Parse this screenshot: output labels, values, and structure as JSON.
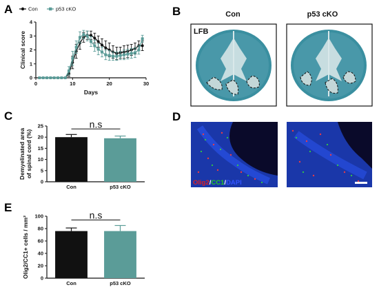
{
  "panel_letters": [
    "A",
    "B",
    "C",
    "D",
    "E"
  ],
  "colors": {
    "con": "#111111",
    "p53": "#5b9c98",
    "lfb_bg": "#9fc6c8",
    "lfb_tissue": "#3a8fa0",
    "fluor_bg": "#0a0a2a",
    "fluor_tissue": "#1d3fbf"
  },
  "panel_b": {
    "col_titles": [
      "Con",
      "p53 cKO"
    ],
    "stain_label": "LFB"
  },
  "panel_d": {
    "legend_parts": [
      {
        "text": "Olig2",
        "color": "#e02020"
      },
      {
        "text": "/",
        "color": "#ffffff"
      },
      {
        "text": "CC1",
        "color": "#22cc22"
      },
      {
        "text": "/",
        "color": "#ffffff"
      },
      {
        "text": "DAPI",
        "color": "#3355ff"
      }
    ]
  },
  "chart_data": [
    {
      "type": "line",
      "panel": "A",
      "xlabel": "Days",
      "ylabel": "Clinical score",
      "xlim": [
        0,
        30
      ],
      "ylim": [
        0,
        4
      ],
      "xticks": [
        0,
        10,
        20,
        30
      ],
      "yticks": [
        0,
        1,
        2,
        3,
        4
      ],
      "legend_position": "top-left",
      "series": [
        {
          "name": "Con",
          "color": "#111111",
          "marker": "circle",
          "x": [
            1,
            2,
            3,
            4,
            5,
            6,
            7,
            8,
            9,
            10,
            11,
            12,
            13,
            14,
            15,
            16,
            17,
            18,
            19,
            20,
            21,
            22,
            23,
            24,
            25,
            26,
            27,
            28,
            29
          ],
          "y": [
            0,
            0,
            0,
            0,
            0,
            0,
            0,
            0,
            0.3,
            1.1,
            1.9,
            2.5,
            2.9,
            3.05,
            3.05,
            2.85,
            2.6,
            2.35,
            2.15,
            2.0,
            1.85,
            1.75,
            1.8,
            1.85,
            1.9,
            2.0,
            2.1,
            2.3,
            2.3
          ],
          "err": [
            0,
            0,
            0,
            0,
            0,
            0,
            0,
            0,
            0.2,
            0.45,
            0.5,
            0.45,
            0.35,
            0.3,
            0.3,
            0.35,
            0.4,
            0.45,
            0.5,
            0.5,
            0.45,
            0.45,
            0.4,
            0.45,
            0.45,
            0.4,
            0.4,
            0.35,
            0.35
          ]
        },
        {
          "name": "p53 cKO",
          "color": "#5b9c98",
          "marker": "square",
          "x": [
            1,
            2,
            3,
            4,
            5,
            6,
            7,
            8,
            9,
            10,
            11,
            12,
            13,
            14,
            15,
            16,
            17,
            18,
            19,
            20,
            21,
            22,
            23,
            24,
            25,
            26,
            27,
            28,
            29
          ],
          "y": [
            0,
            0,
            0,
            0,
            0,
            0,
            0,
            0,
            0.5,
            1.4,
            2.2,
            2.9,
            3.1,
            3.0,
            2.6,
            2.3,
            2.05,
            1.85,
            1.65,
            1.6,
            1.55,
            1.55,
            1.6,
            1.65,
            1.7,
            1.75,
            1.8,
            2.0,
            2.8
          ],
          "err": [
            0,
            0,
            0,
            0,
            0,
            0,
            0,
            0,
            0.3,
            0.5,
            0.45,
            0.4,
            0.3,
            0.35,
            0.35,
            0.4,
            0.4,
            0.35,
            0.35,
            0.35,
            0.3,
            0.3,
            0.3,
            0.35,
            0.35,
            0.35,
            0.35,
            0.3,
            0.25
          ]
        }
      ]
    },
    {
      "type": "bar",
      "panel": "C",
      "categories": [
        "Con",
        "p53 cKO"
      ],
      "values": [
        20,
        19.5
      ],
      "errors": [
        1.2,
        1.0
      ],
      "bar_colors": [
        "#111111",
        "#5b9c98"
      ],
      "ylabel": "Demyelinated area\nof spinal cord (%)",
      "ylim": [
        0,
        25
      ],
      "yticks": [
        0,
        5,
        10,
        15,
        20,
        25
      ],
      "annotation": "n.s"
    },
    {
      "type": "bar",
      "panel": "E",
      "categories": [
        "Con",
        "p53 cKO"
      ],
      "values": [
        76,
        76
      ],
      "errors": [
        5,
        9
      ],
      "bar_colors": [
        "#111111",
        "#5b9c98"
      ],
      "ylabel": "Olig2/CC1+ cells / mm²",
      "ylim": [
        0,
        100
      ],
      "yticks": [
        0,
        20,
        40,
        60,
        80,
        100
      ],
      "annotation": "n.s"
    }
  ]
}
